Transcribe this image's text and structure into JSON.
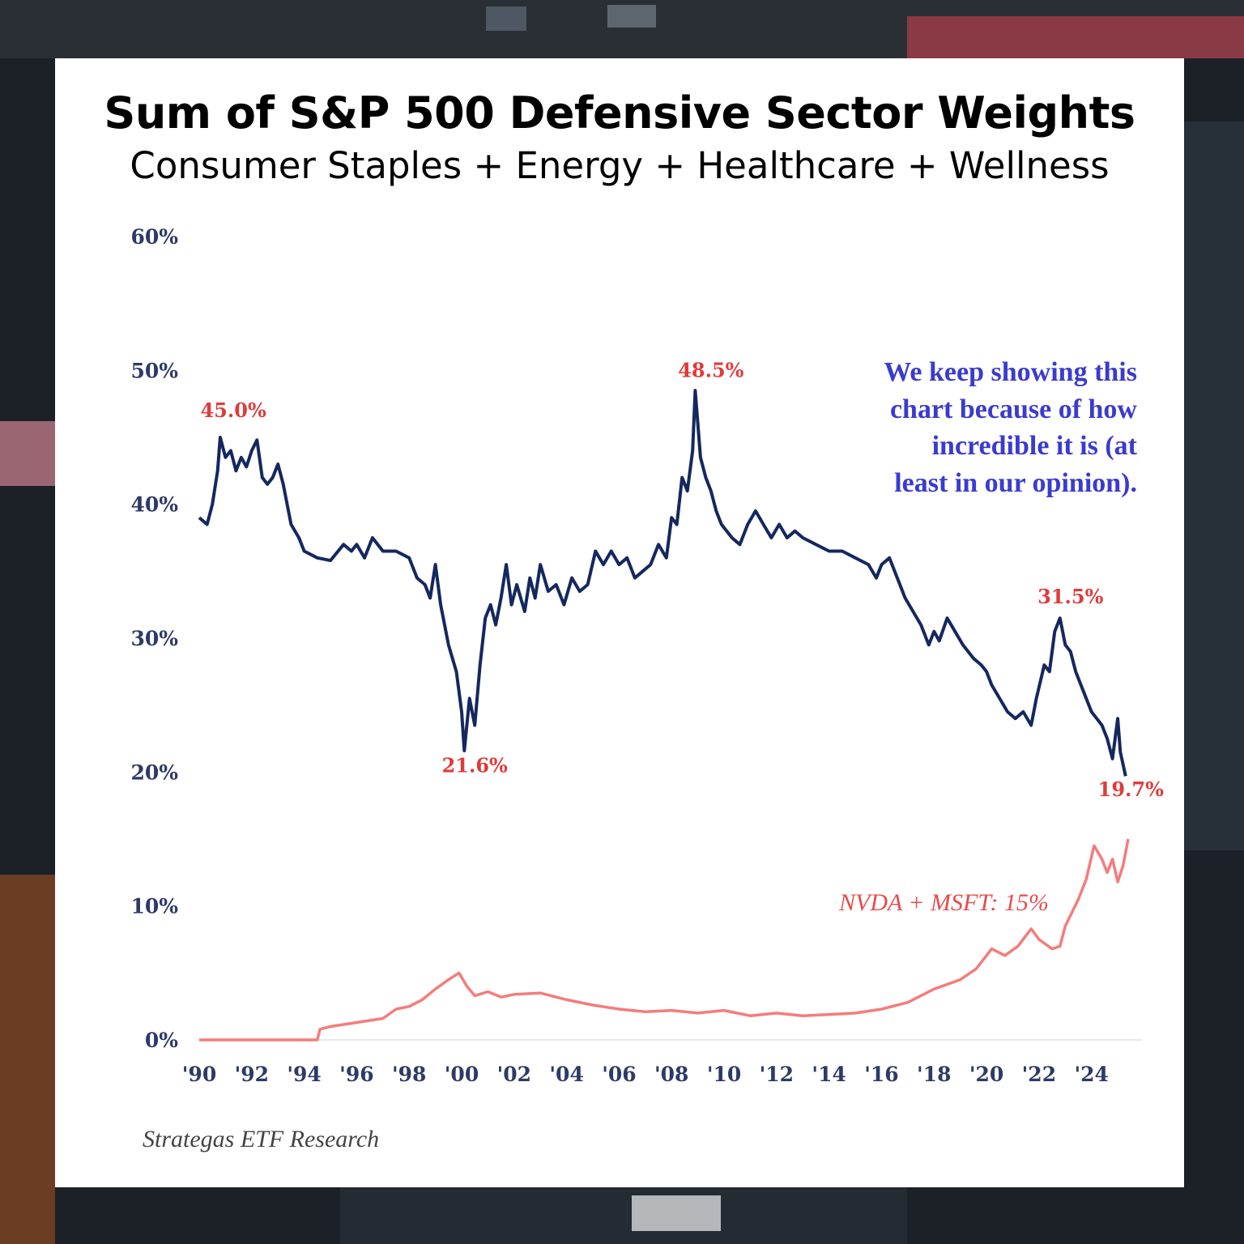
{
  "header": {
    "title": "Sum of S&P 500 Defensive Sector Weights",
    "subtitle": "Consumer Staples + Energy + Healthcare + Wellness"
  },
  "colors": {
    "defensive_line": "#14285f",
    "nvda_line": "#f47c7c",
    "peak_labels": "#e03a3a",
    "comment_text": "#3b3bd0",
    "axis_text": "#2e3a66"
  },
  "annotation": {
    "comment_lines": [
      "We keep showing this",
      "chart because of how",
      "incredible it is (at",
      "least in our opinion)."
    ],
    "nvda_label": "NVDA + MSFT: 15%"
  },
  "source": "Strategas ETF Research",
  "chart_data": {
    "type": "line",
    "xlim": [
      1990,
      2025.8
    ],
    "ylim": [
      0,
      60
    ],
    "x_ticks": [
      1990,
      1992,
      1994,
      1996,
      1998,
      2000,
      2002,
      2004,
      2006,
      2008,
      2010,
      2012,
      2014,
      2016,
      2018,
      2020,
      2022,
      2024
    ],
    "x_tick_labels": [
      "'90",
      "'92",
      "'94",
      "'96",
      "'98",
      "'00",
      "'02",
      "'04",
      "'06",
      "'08",
      "'10",
      "'12",
      "'14",
      "'16",
      "'18",
      "'20",
      "'22",
      "'24"
    ],
    "y_ticks": [
      0,
      10,
      20,
      30,
      40,
      50,
      60
    ],
    "y_tick_labels": [
      "0%",
      "10%",
      "20%",
      "30%",
      "40%",
      "50%",
      "60%"
    ],
    "grid": false,
    "series": [
      {
        "key": "defensive",
        "points": [
          [
            1990.0,
            39.0
          ],
          [
            1990.3,
            38.5
          ],
          [
            1990.5,
            40.0
          ],
          [
            1990.7,
            42.5
          ],
          [
            1990.8,
            45.0
          ],
          [
            1991.0,
            43.5
          ],
          [
            1991.2,
            44.0
          ],
          [
            1991.4,
            42.5
          ],
          [
            1991.6,
            43.5
          ],
          [
            1991.8,
            42.8
          ],
          [
            1992.0,
            44.0
          ],
          [
            1992.2,
            44.8
          ],
          [
            1992.4,
            42.0
          ],
          [
            1992.6,
            41.5
          ],
          [
            1992.8,
            42.0
          ],
          [
            1993.0,
            43.0
          ],
          [
            1993.2,
            41.5
          ],
          [
            1993.5,
            38.5
          ],
          [
            1993.8,
            37.5
          ],
          [
            1994.0,
            36.5
          ],
          [
            1994.5,
            36.0
          ],
          [
            1995.0,
            35.8
          ],
          [
            1995.5,
            37.0
          ],
          [
            1995.8,
            36.5
          ],
          [
            1996.0,
            37.0
          ],
          [
            1996.3,
            36.0
          ],
          [
            1996.6,
            37.5
          ],
          [
            1997.0,
            36.5
          ],
          [
            1997.5,
            36.5
          ],
          [
            1998.0,
            36.0
          ],
          [
            1998.3,
            34.5
          ],
          [
            1998.6,
            34.0
          ],
          [
            1998.8,
            33.0
          ],
          [
            1999.0,
            35.5
          ],
          [
            1999.2,
            32.5
          ],
          [
            1999.5,
            29.5
          ],
          [
            1999.8,
            27.5
          ],
          [
            2000.0,
            24.5
          ],
          [
            2000.1,
            21.6
          ],
          [
            2000.3,
            25.5
          ],
          [
            2000.5,
            23.5
          ],
          [
            2000.7,
            28.0
          ],
          [
            2000.9,
            31.5
          ],
          [
            2001.1,
            32.5
          ],
          [
            2001.3,
            31.0
          ],
          [
            2001.5,
            33.0
          ],
          [
            2001.7,
            35.5
          ],
          [
            2001.9,
            32.5
          ],
          [
            2002.1,
            34.0
          ],
          [
            2002.4,
            32.0
          ],
          [
            2002.6,
            34.5
          ],
          [
            2002.8,
            33.0
          ],
          [
            2003.0,
            35.5
          ],
          [
            2003.3,
            33.5
          ],
          [
            2003.6,
            34.0
          ],
          [
            2003.9,
            32.5
          ],
          [
            2004.2,
            34.5
          ],
          [
            2004.5,
            33.5
          ],
          [
            2004.8,
            34.0
          ],
          [
            2005.1,
            36.5
          ],
          [
            2005.4,
            35.5
          ],
          [
            2005.7,
            36.5
          ],
          [
            2006.0,
            35.5
          ],
          [
            2006.3,
            36.0
          ],
          [
            2006.6,
            34.5
          ],
          [
            2006.9,
            35.0
          ],
          [
            2007.2,
            35.5
          ],
          [
            2007.5,
            37.0
          ],
          [
            2007.8,
            36.0
          ],
          [
            2008.0,
            39.0
          ],
          [
            2008.2,
            38.5
          ],
          [
            2008.4,
            42.0
          ],
          [
            2008.6,
            41.0
          ],
          [
            2008.8,
            44.0
          ],
          [
            2008.9,
            48.5
          ],
          [
            2009.1,
            43.5
          ],
          [
            2009.3,
            42.0
          ],
          [
            2009.5,
            41.0
          ],
          [
            2009.7,
            39.5
          ],
          [
            2009.9,
            38.5
          ],
          [
            2010.1,
            38.0
          ],
          [
            2010.3,
            37.5
          ],
          [
            2010.6,
            37.0
          ],
          [
            2010.9,
            38.5
          ],
          [
            2011.2,
            39.5
          ],
          [
            2011.5,
            38.5
          ],
          [
            2011.8,
            37.5
          ],
          [
            2012.1,
            38.5
          ],
          [
            2012.4,
            37.5
          ],
          [
            2012.7,
            38.0
          ],
          [
            2013.0,
            37.5
          ],
          [
            2013.5,
            37.0
          ],
          [
            2014.0,
            36.5
          ],
          [
            2014.5,
            36.5
          ],
          [
            2015.0,
            36.0
          ],
          [
            2015.5,
            35.5
          ],
          [
            2015.8,
            34.5
          ],
          [
            2016.0,
            35.5
          ],
          [
            2016.3,
            36.0
          ],
          [
            2016.6,
            34.5
          ],
          [
            2016.9,
            33.0
          ],
          [
            2017.2,
            32.0
          ],
          [
            2017.5,
            31.0
          ],
          [
            2017.8,
            29.5
          ],
          [
            2018.0,
            30.5
          ],
          [
            2018.2,
            29.8
          ],
          [
            2018.5,
            31.5
          ],
          [
            2018.8,
            30.5
          ],
          [
            2019.1,
            29.5
          ],
          [
            2019.5,
            28.5
          ],
          [
            2019.8,
            28.0
          ],
          [
            2020.0,
            27.5
          ],
          [
            2020.2,
            26.5
          ],
          [
            2020.5,
            25.5
          ],
          [
            2020.8,
            24.5
          ],
          [
            2021.1,
            24.0
          ],
          [
            2021.4,
            24.5
          ],
          [
            2021.7,
            23.5
          ],
          [
            2021.9,
            25.5
          ],
          [
            2022.2,
            28.0
          ],
          [
            2022.4,
            27.5
          ],
          [
            2022.6,
            30.5
          ],
          [
            2022.8,
            31.5
          ],
          [
            2023.0,
            29.5
          ],
          [
            2023.2,
            29.0
          ],
          [
            2023.4,
            27.5
          ],
          [
            2023.6,
            26.5
          ],
          [
            2023.8,
            25.5
          ],
          [
            2024.0,
            24.5
          ],
          [
            2024.2,
            24.0
          ],
          [
            2024.4,
            23.5
          ],
          [
            2024.6,
            22.5
          ],
          [
            2024.8,
            21.0
          ],
          [
            2025.0,
            24.0
          ],
          [
            2025.1,
            21.5
          ],
          [
            2025.3,
            19.7
          ]
        ]
      },
      {
        "name": "NVDA + MSFT",
        "key": "nvda",
        "points": [
          [
            1990.0,
            0.0
          ],
          [
            1994.5,
            0.0
          ],
          [
            1994.6,
            0.8
          ],
          [
            1995.0,
            1.0
          ],
          [
            1996.0,
            1.3
          ],
          [
            1997.0,
            1.6
          ],
          [
            1997.5,
            2.3
          ],
          [
            1998.0,
            2.5
          ],
          [
            1998.5,
            3.0
          ],
          [
            1999.0,
            3.8
          ],
          [
            1999.5,
            4.5
          ],
          [
            1999.9,
            5.0
          ],
          [
            2000.2,
            4.0
          ],
          [
            2000.5,
            3.3
          ],
          [
            2001.0,
            3.6
          ],
          [
            2001.5,
            3.2
          ],
          [
            2002.0,
            3.4
          ],
          [
            2003.0,
            3.5
          ],
          [
            2004.0,
            3.0
          ],
          [
            2005.0,
            2.6
          ],
          [
            2006.0,
            2.3
          ],
          [
            2007.0,
            2.1
          ],
          [
            2008.0,
            2.2
          ],
          [
            2009.0,
            2.0
          ],
          [
            2010.0,
            2.2
          ],
          [
            2011.0,
            1.8
          ],
          [
            2012.0,
            2.0
          ],
          [
            2013.0,
            1.8
          ],
          [
            2014.0,
            1.9
          ],
          [
            2015.0,
            2.0
          ],
          [
            2016.0,
            2.3
          ],
          [
            2017.0,
            2.8
          ],
          [
            2018.0,
            3.8
          ],
          [
            2019.0,
            4.5
          ],
          [
            2019.6,
            5.3
          ],
          [
            2020.2,
            6.8
          ],
          [
            2020.7,
            6.3
          ],
          [
            2021.2,
            7.0
          ],
          [
            2021.7,
            8.3
          ],
          [
            2022.0,
            7.5
          ],
          [
            2022.5,
            6.8
          ],
          [
            2022.8,
            7.0
          ],
          [
            2023.0,
            8.5
          ],
          [
            2023.5,
            10.5
          ],
          [
            2023.8,
            12.0
          ],
          [
            2024.1,
            14.5
          ],
          [
            2024.4,
            13.5
          ],
          [
            2024.6,
            12.5
          ],
          [
            2024.8,
            13.5
          ],
          [
            2025.0,
            11.8
          ],
          [
            2025.2,
            13.0
          ],
          [
            2025.4,
            15.0
          ]
        ]
      }
    ],
    "peak_labels": [
      {
        "text": "45.0%",
        "x": 1991.3,
        "y": 46.5
      },
      {
        "text": "21.6%",
        "x": 2000.5,
        "y": 20.0
      },
      {
        "text": "48.5%",
        "x": 2009.5,
        "y": 49.5
      },
      {
        "text": "31.5%",
        "x": 2023.2,
        "y": 32.6
      },
      {
        "text": "19.7%",
        "x": 2025.5,
        "y": 18.2
      }
    ]
  }
}
